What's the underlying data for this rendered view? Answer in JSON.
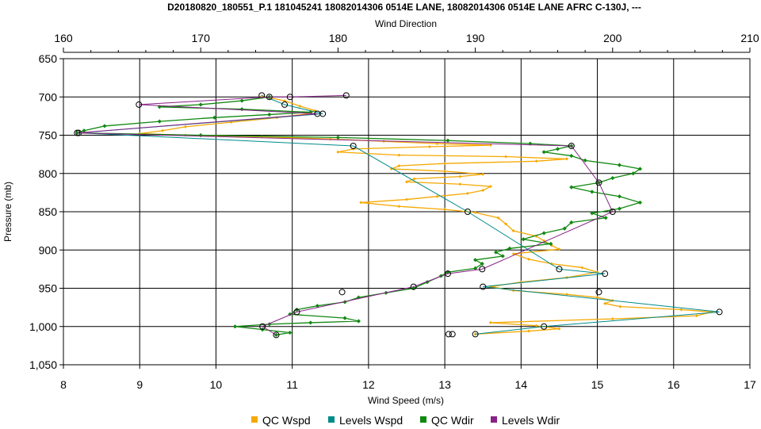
{
  "chart_data": {
    "type": "line",
    "title": "D20180820_180551_P.1 181045241 18082014306 0514E LANE, 18082014306 0514E LANE AFRC C-130J, ---",
    "xlabel_bottom": "Wind Speed (m/s)",
    "xlabel_top": "Wind Direction",
    "ylabel": "Pressure (mb)",
    "xlim_bottom": [
      8,
      17
    ],
    "xlim_top": [
      160,
      210
    ],
    "ylim": [
      650,
      1050
    ],
    "y_inverted": true,
    "grid": true,
    "legend_position": "bottom",
    "x_ticks_bottom": [
      "8",
      "9",
      "10",
      "11",
      "12",
      "13",
      "14",
      "15",
      "16",
      "17"
    ],
    "x_ticks_top": [
      "160",
      "170",
      "180",
      "190",
      "200",
      "210"
    ],
    "y_ticks": [
      "650",
      "700",
      "750",
      "800",
      "850",
      "900",
      "950",
      "1,000",
      "1,050"
    ],
    "series": [
      {
        "name": "QC Wspd",
        "axis": "bottom",
        "color": "#F5A800",
        "marker": "diamond-small",
        "points": [
          [
            10.6,
            699
          ],
          [
            10.9,
            705
          ],
          [
            11.1,
            712
          ],
          [
            11.3,
            718
          ],
          [
            11.2,
            722
          ],
          [
            10.8,
            727
          ],
          [
            10.2,
            733
          ],
          [
            9.6,
            739
          ],
          [
            9.3,
            744
          ],
          [
            9.0,
            748
          ],
          [
            9.6,
            750
          ],
          [
            10.6,
            752
          ],
          [
            11.5,
            755
          ],
          [
            12.2,
            758
          ],
          [
            12.9,
            761
          ],
          [
            13.6,
            763
          ],
          [
            12.8,
            765
          ],
          [
            11.8,
            768
          ],
          [
            11.6,
            772
          ],
          [
            12.4,
            776
          ],
          [
            13.8,
            778
          ],
          [
            14.6,
            781
          ],
          [
            14.2,
            784
          ],
          [
            13.0,
            787
          ],
          [
            12.4,
            790
          ],
          [
            12.3,
            794
          ],
          [
            13.0,
            797
          ],
          [
            13.5,
            801
          ],
          [
            13.2,
            804
          ],
          [
            12.6,
            807
          ],
          [
            12.5,
            811
          ],
          [
            13.2,
            814
          ],
          [
            13.6,
            817
          ],
          [
            13.5,
            822
          ],
          [
            13.3,
            826
          ],
          [
            12.9,
            830
          ],
          [
            12.5,
            834
          ],
          [
            11.9,
            838
          ],
          [
            12.4,
            843
          ],
          [
            13.0,
            847
          ],
          [
            13.4,
            851
          ],
          [
            13.7,
            858
          ],
          [
            13.8,
            866
          ],
          [
            13.9,
            875
          ],
          [
            14.2,
            882
          ],
          [
            14.3,
            888
          ],
          [
            14.4,
            894
          ],
          [
            14.5,
            899
          ],
          [
            13.9,
            905
          ],
          [
            14.1,
            912
          ],
          [
            14.4,
            918
          ],
          [
            14.8,
            923
          ],
          [
            15.0,
            929
          ],
          [
            14.6,
            936
          ],
          [
            14.0,
            942
          ],
          [
            13.6,
            948
          ],
          [
            13.9,
            953
          ],
          [
            14.6,
            958
          ],
          [
            15.0,
            962
          ],
          [
            15.2,
            966
          ],
          [
            15.1,
            970
          ],
          [
            15.3,
            974
          ],
          [
            16.1,
            978
          ],
          [
            16.5,
            981
          ],
          [
            16.3,
            986
          ],
          [
            15.2,
            990
          ],
          [
            13.6,
            995
          ],
          [
            14.2,
            999
          ],
          [
            14.5,
            1003
          ],
          [
            14.1,
            1006
          ],
          [
            13.4,
            1010
          ]
        ]
      },
      {
        "name": "Levels Wspd",
        "axis": "bottom",
        "color": "#008B8B",
        "marker": "circle",
        "points": [
          [
            10.6,
            698
          ],
          [
            10.9,
            710
          ],
          [
            11.4,
            722
          ],
          [
            8.2,
            747
          ],
          [
            11.8,
            764
          ],
          [
            13.3,
            850
          ],
          [
            14.5,
            925
          ],
          [
            15.1,
            931
          ],
          [
            13.5,
            948
          ],
          [
            16.6,
            981
          ],
          [
            14.3,
            1000
          ],
          [
            13.4,
            1010
          ]
        ]
      },
      {
        "name": "QC Wdir",
        "axis": "top",
        "color": "#118811",
        "marker": "diamond",
        "points": [
          [
            175.0,
            700
          ],
          [
            173.0,
            705
          ],
          [
            170.0,
            710
          ],
          [
            167.0,
            713
          ],
          [
            173.0,
            716
          ],
          [
            178.0,
            720
          ],
          [
            175.0,
            723
          ],
          [
            171.0,
            727
          ],
          [
            167.0,
            732
          ],
          [
            163.0,
            738
          ],
          [
            161.5,
            744
          ],
          [
            161.0,
            747
          ],
          [
            170.0,
            750
          ],
          [
            180.0,
            753
          ],
          [
            188.0,
            757
          ],
          [
            194.0,
            761
          ],
          [
            197.0,
            764
          ],
          [
            196.0,
            768
          ],
          [
            195.0,
            772
          ],
          [
            197.0,
            777
          ],
          [
            198.0,
            783
          ],
          [
            200.5,
            789
          ],
          [
            202.0,
            794
          ],
          [
            201.5,
            800
          ],
          [
            200.0,
            806
          ],
          [
            199.0,
            812
          ],
          [
            197.0,
            818
          ],
          [
            198.5,
            824
          ],
          [
            200.5,
            830
          ],
          [
            202.0,
            838
          ],
          [
            200.5,
            846
          ],
          [
            198.5,
            852
          ],
          [
            199.5,
            858
          ],
          [
            197.0,
            864
          ],
          [
            196.5,
            872
          ],
          [
            195.0,
            878
          ],
          [
            193.5,
            886
          ],
          [
            195.5,
            892
          ],
          [
            192.5,
            898
          ],
          [
            191.5,
            903
          ],
          [
            192.0,
            908
          ],
          [
            190.0,
            913
          ],
          [
            190.5,
            918
          ],
          [
            190.0,
            924
          ],
          [
            188.0,
            929
          ],
          [
            187.5,
            934
          ],
          [
            186.5,
            942
          ],
          [
            185.5,
            950
          ],
          [
            183.5,
            956
          ],
          [
            181.5,
            962
          ],
          [
            180.5,
            968
          ],
          [
            178.5,
            973
          ],
          [
            177.0,
            978
          ],
          [
            176.5,
            984
          ],
          [
            180.5,
            989
          ],
          [
            181.5,
            993
          ],
          [
            178.0,
            995
          ],
          [
            175.0,
            997
          ],
          [
            172.5,
            1000
          ],
          [
            174.5,
            1004
          ],
          [
            176.5,
            1008
          ],
          [
            175.5,
            1011
          ]
        ]
      },
      {
        "name": "Levels Wdir",
        "axis": "top",
        "color": "#882288",
        "marker": "circle",
        "points": [
          [
            180.6,
            698
          ],
          [
            176.5,
            700
          ],
          [
            175.0,
            700
          ],
          [
            165.5,
            710
          ],
          [
            178.5,
            722
          ],
          [
            161.0,
            747
          ],
          [
            197.0,
            764
          ],
          [
            199.0,
            812
          ],
          [
            200.0,
            850
          ],
          [
            190.5,
            925
          ],
          [
            188.0,
            931
          ],
          [
            185.5,
            948
          ],
          [
            177.0,
            981
          ],
          [
            174.5,
            1000
          ],
          [
            175.5,
            1011
          ]
        ]
      }
    ],
    "stray_markers": [
      {
        "axis": "top",
        "points": [
          [
            180.3,
            955
          ],
          [
            199.0,
            955
          ]
        ]
      },
      {
        "axis": "bottom",
        "points": [
          [
            13.05,
            1010
          ],
          [
            13.1,
            1010
          ]
        ]
      }
    ],
    "legend": [
      "QC Wspd",
      "Levels Wspd",
      "QC Wdir",
      "Levels Wdir"
    ]
  }
}
